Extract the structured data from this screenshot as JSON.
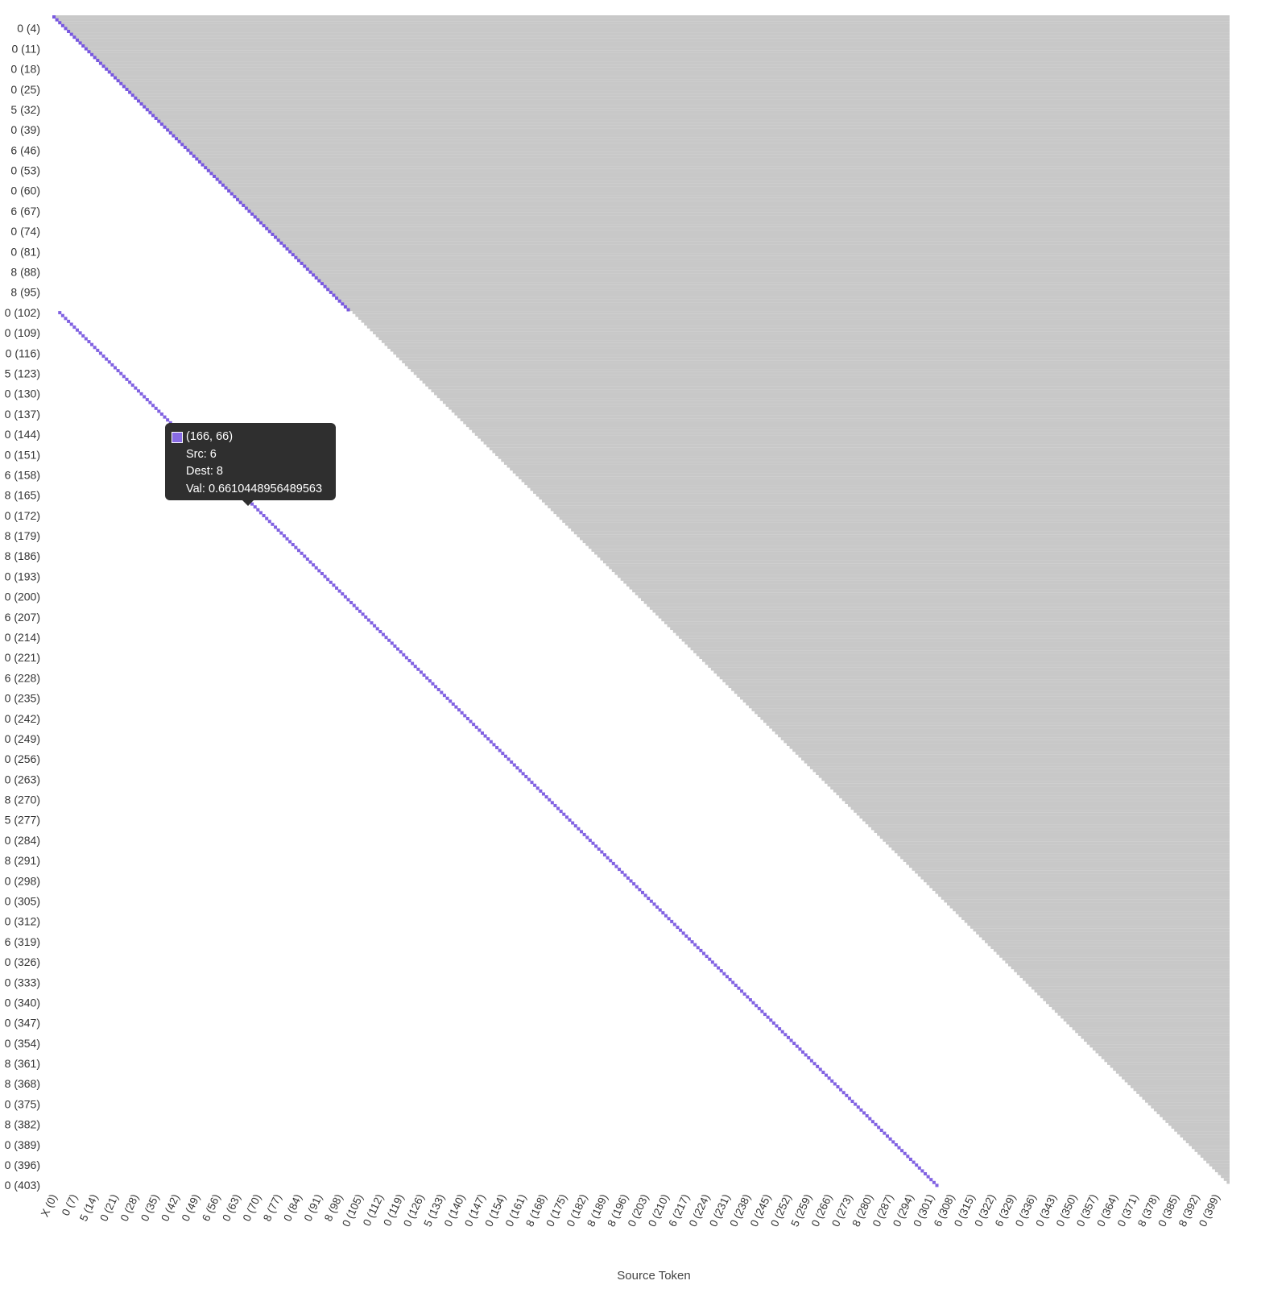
{
  "chart_data": {
    "type": "heatmap",
    "xlabel": "Source Token",
    "ylabel": "",
    "title": "",
    "n_tokens": 404,
    "x_tick_labels": [
      "X (0)",
      "0 (7)",
      "5 (14)",
      "0 (21)",
      "0 (28)",
      "0 (35)",
      "0 (42)",
      "0 (49)",
      "6 (56)",
      "0 (63)",
      "0 (70)",
      "8 (77)",
      "0 (84)",
      "0 (91)",
      "8 (98)",
      "0 (105)",
      "0 (112)",
      "0 (119)",
      "0 (126)",
      "5 (133)",
      "0 (140)",
      "0 (147)",
      "0 (154)",
      "0 (161)",
      "8 (168)",
      "0 (175)",
      "0 (182)",
      "8 (189)",
      "8 (196)",
      "0 (203)",
      "0 (210)",
      "6 (217)",
      "0 (224)",
      "0 (231)",
      "0 (238)",
      "0 (245)",
      "0 (252)",
      "5 (259)",
      "0 (266)",
      "0 (273)",
      "8 (280)",
      "0 (287)",
      "0 (294)",
      "0 (301)",
      "6 (308)",
      "0 (315)",
      "0 (322)",
      "6 (329)",
      "0 (336)",
      "0 (343)",
      "0 (350)",
      "0 (357)",
      "0 (364)",
      "0 (371)",
      "8 (378)",
      "0 (385)",
      "8 (392)",
      "0 (399)"
    ],
    "y_tick_labels": [
      "0 (4)",
      "0 (11)",
      "0 (18)",
      "0 (25)",
      "5 (32)",
      "0 (39)",
      "6 (46)",
      "0 (53)",
      "0 (60)",
      "6 (67)",
      "0 (74)",
      "0 (81)",
      "8 (88)",
      "8 (95)",
      "0 (102)",
      "0 (109)",
      "0 (116)",
      "5 (123)",
      "0 (130)",
      "0 (137)",
      "0 (144)",
      "0 (151)",
      "6 (158)",
      "8 (165)",
      "0 (172)",
      "8 (179)",
      "8 (186)",
      "0 (193)",
      "0 (200)",
      "6 (207)",
      "0 (214)",
      "0 (221)",
      "6 (228)",
      "0 (235)",
      "0 (242)",
      "0 (249)",
      "0 (256)",
      "0 (263)",
      "8 (270)",
      "5 (277)",
      "0 (284)",
      "8 (291)",
      "0 (298)",
      "0 (305)",
      "0 (312)",
      "6 (319)",
      "0 (326)",
      "0 (333)",
      "0 (340)",
      "0 (347)",
      "0 (354)",
      "8 (361)",
      "8 (368)",
      "0 (375)",
      "8 (382)",
      "0 (389)",
      "0 (396)",
      "0 (403)"
    ],
    "masked_region": "upper triangle (source > destination)",
    "colors": {
      "cell_high": "#4b1fd6",
      "cell_low": "#ffffff",
      "masked": "#c8c8c8"
    },
    "attention_diagonals": [
      {
        "dest_from": 0,
        "dest_to": 101,
        "offset": 0,
        "strength": 0.75
      },
      {
        "dest_from": 102,
        "dest_to": 403,
        "offset": 100,
        "strength": 0.7
      }
    ],
    "tooltip": {
      "coords": "(166, 66)",
      "src_label": "Src: 6",
      "dest_label": "Dest: 8",
      "val_label": "Val: 0.6610448956489563",
      "value": 0.6610448956489563
    }
  }
}
